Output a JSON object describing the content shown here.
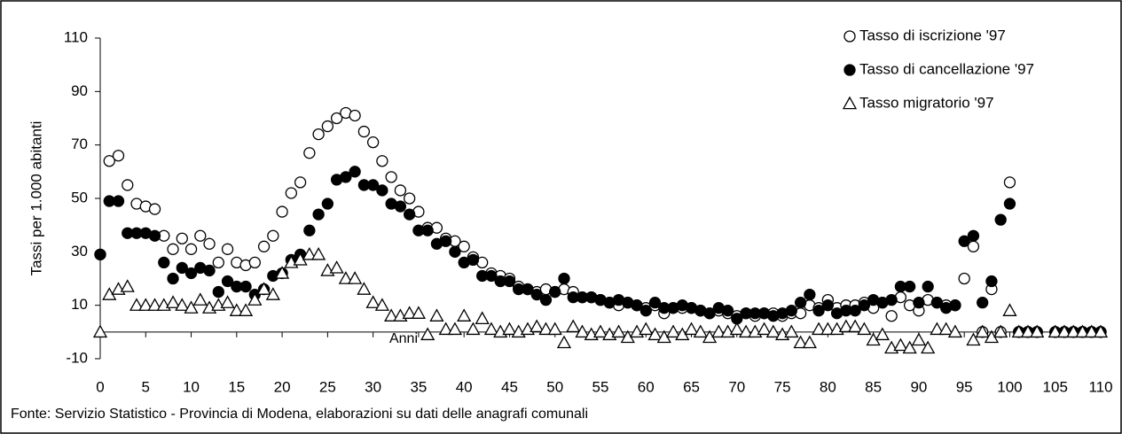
{
  "chart_data": {
    "type": "scatter",
    "y_label": "Tassi per 1.000 abitanti",
    "x_label": "Anni",
    "source": "Fonte: Servizio Statistico - Provincia di Modena, elaborazioni su dati delle anagrafi comunali",
    "x": [
      0,
      1,
      2,
      3,
      4,
      5,
      6,
      7,
      8,
      9,
      10,
      11,
      12,
      13,
      14,
      15,
      16,
      17,
      18,
      19,
      20,
      21,
      22,
      23,
      24,
      25,
      26,
      27,
      28,
      29,
      30,
      31,
      32,
      33,
      34,
      35,
      36,
      37,
      38,
      39,
      40,
      41,
      42,
      43,
      44,
      45,
      46,
      47,
      48,
      49,
      50,
      51,
      52,
      53,
      54,
      55,
      56,
      57,
      58,
      59,
      60,
      61,
      62,
      63,
      64,
      65,
      66,
      67,
      68,
      69,
      70,
      71,
      72,
      73,
      74,
      75,
      76,
      77,
      78,
      79,
      80,
      81,
      82,
      83,
      84,
      85,
      86,
      87,
      88,
      89,
      90,
      91,
      92,
      93,
      94,
      95,
      96,
      97,
      98,
      99,
      100,
      101,
      102,
      103,
      104,
      105,
      106,
      107,
      108,
      109,
      110
    ],
    "series": [
      {
        "name": "Tasso di iscrizione '97",
        "color": "#000000",
        "marker": "circle-open",
        "values": [
          29,
          64,
          66,
          55,
          48,
          47,
          46,
          36,
          31,
          35,
          31,
          36,
          33,
          26,
          31,
          26,
          25,
          26,
          32,
          36,
          45,
          52,
          56,
          67,
          74,
          77,
          80,
          82,
          81,
          75,
          71,
          64,
          58,
          53,
          50,
          45,
          39,
          39,
          35,
          34,
          32,
          28,
          26,
          22,
          21,
          20,
          17,
          16,
          15,
          16,
          15,
          16,
          15,
          13,
          13,
          12,
          11,
          10,
          11,
          10,
          9,
          10,
          7,
          9,
          9,
          9,
          8,
          7,
          8,
          7,
          6,
          7,
          6,
          7,
          7,
          6,
          7,
          7,
          10,
          9,
          12,
          9,
          10,
          10,
          11,
          9,
          11,
          6,
          13,
          10,
          8,
          12,
          11,
          10,
          10,
          20,
          32,
          0,
          16,
          0,
          56,
          0,
          0,
          0,
          null,
          0,
          0,
          0,
          0,
          0,
          0
        ]
      },
      {
        "name": "Tasso di cancellazione '97",
        "color": "#000000",
        "marker": "circle",
        "values": [
          29,
          49,
          49,
          37,
          37,
          37,
          36,
          26,
          20,
          24,
          22,
          24,
          23,
          15,
          19,
          17,
          17,
          14,
          16,
          21,
          22,
          27,
          29,
          38,
          44,
          48,
          57,
          58,
          60,
          55,
          55,
          53,
          48,
          47,
          44,
          38,
          38,
          33,
          34,
          30,
          26,
          27,
          21,
          21,
          19,
          19,
          16,
          16,
          14,
          12,
          15,
          20,
          13,
          13,
          13,
          12,
          11,
          12,
          11,
          10,
          8,
          11,
          9,
          9,
          10,
          9,
          8,
          7,
          9,
          8,
          5,
          7,
          7,
          7,
          6,
          7,
          8,
          11,
          14,
          8,
          10,
          7,
          8,
          8,
          10,
          12,
          11,
          12,
          17,
          17,
          11,
          17,
          11,
          9,
          10,
          34,
          36,
          11,
          19,
          42,
          48,
          0,
          0,
          0,
          null,
          0,
          0,
          0,
          0,
          0,
          0
        ]
      },
      {
        "name": "Tasso migratorio '97",
        "color": "#000000",
        "marker": "triangle-open",
        "values": [
          0,
          14,
          16,
          17,
          10,
          10,
          10,
          10,
          11,
          10,
          9,
          12,
          9,
          10,
          11,
          8,
          8,
          12,
          16,
          14,
          22,
          26,
          27,
          29,
          29,
          23,
          24,
          20,
          20,
          16,
          11,
          10,
          6,
          6,
          7,
          7,
          -1,
          6,
          1,
          1,
          6,
          1,
          5,
          1,
          0,
          1,
          0,
          1,
          2,
          1,
          1,
          -4,
          2,
          0,
          -1,
          0,
          -1,
          0,
          -2,
          0,
          1,
          -1,
          -2,
          0,
          -1,
          1,
          0,
          -2,
          0,
          0,
          1,
          0,
          0,
          1,
          0,
          -1,
          0,
          -4,
          -4,
          1,
          1,
          1,
          2,
          2,
          1,
          -3,
          -1,
          -6,
          -5,
          -6,
          -3,
          -6,
          1,
          1,
          0,
          null,
          -3,
          0,
          -2,
          0,
          8,
          0,
          0,
          0,
          null,
          0,
          0,
          0,
          0,
          0,
          0
        ]
      }
    ],
    "xlim": [
      0,
      110
    ],
    "xticks": [
      0,
      5,
      10,
      15,
      20,
      25,
      30,
      35,
      40,
      45,
      50,
      55,
      60,
      65,
      70,
      75,
      80,
      85,
      90,
      95,
      100,
      105,
      110
    ],
    "ylim": [
      -10,
      110
    ],
    "yticks": [
      -10,
      10,
      30,
      50,
      70,
      90,
      110
    ],
    "grid": false,
    "legend": "top-right"
  }
}
